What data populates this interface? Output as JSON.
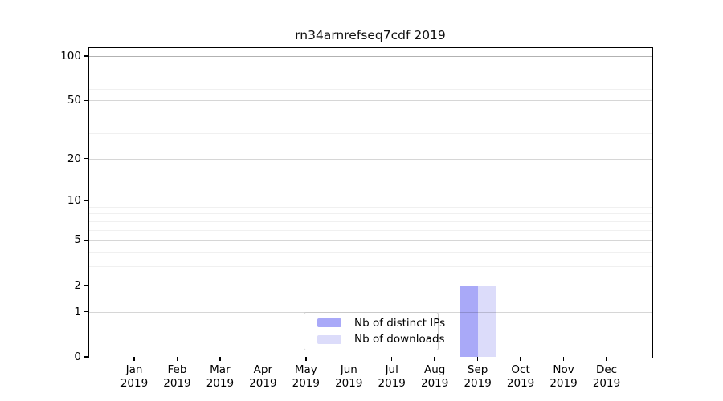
{
  "chart_data": {
    "type": "bar",
    "title": "rn34arnrefseq7cdf 2019",
    "x_ticks": [
      {
        "month": "Jan",
        "year": "2019"
      },
      {
        "month": "Feb",
        "year": "2019"
      },
      {
        "month": "Mar",
        "year": "2019"
      },
      {
        "month": "Apr",
        "year": "2019"
      },
      {
        "month": "May",
        "year": "2019"
      },
      {
        "month": "Jun",
        "year": "2019"
      },
      {
        "month": "Jul",
        "year": "2019"
      },
      {
        "month": "Aug",
        "year": "2019"
      },
      {
        "month": "Sep",
        "year": "2019"
      },
      {
        "month": "Oct",
        "year": "2019"
      },
      {
        "month": "Nov",
        "year": "2019"
      },
      {
        "month": "Dec",
        "year": "2019"
      }
    ],
    "series": [
      {
        "name": "Nb of distinct IPs",
        "color": "#a9a9f8",
        "values": [
          0,
          0,
          0,
          0,
          0,
          0,
          0,
          0,
          2,
          0,
          0,
          0
        ]
      },
      {
        "name": "Nb of downloads",
        "color": "#dcdcfa",
        "values": [
          0,
          0,
          0,
          0,
          0,
          0,
          0,
          0,
          2,
          0,
          0,
          0
        ]
      }
    ],
    "y_axis": {
      "scale": "log1p",
      "tick_values": [
        0,
        1,
        2,
        5,
        10,
        20,
        50,
        100
      ],
      "minor_gridlines": [
        3,
        4,
        6,
        7,
        8,
        9,
        30,
        40,
        60,
        70,
        80,
        90
      ],
      "ylim": [
        0,
        113
      ]
    },
    "legend_position": "bottom-center",
    "grid": true
  }
}
